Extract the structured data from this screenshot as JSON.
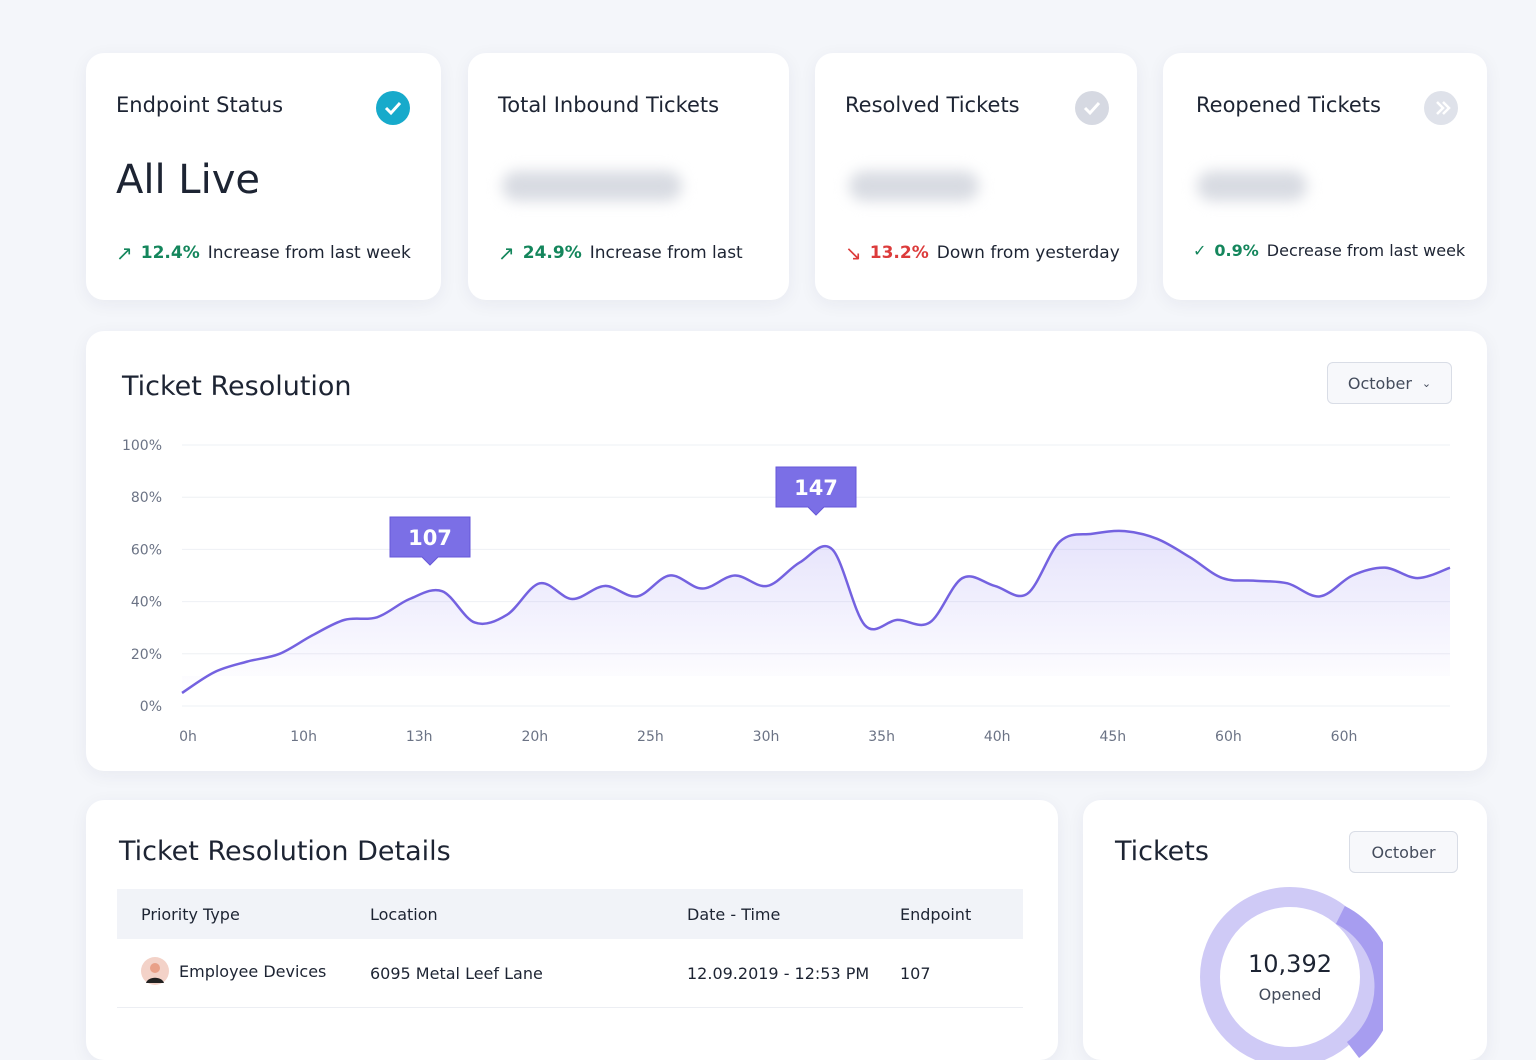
{
  "cards": [
    {
      "title": "Endpoint Status",
      "value": "All Live",
      "change": "12.4%",
      "note": "Increase from last week"
    },
    {
      "title": "Total Inbound Tickets",
      "change": "24.9%",
      "note": "Increase from last"
    },
    {
      "title": "Resolved Tickets",
      "change": "13.2%",
      "note": "Down from yesterday"
    },
    {
      "title": "Reopened Tickets",
      "change": "0.9%",
      "note": "Decrease from last week"
    }
  ],
  "resolution_chart": {
    "title": "Ticket Resolution",
    "period": "October",
    "x_labels": [
      "0h",
      "10h",
      "13h",
      "20h",
      "25h",
      "30h",
      "35h",
      "40h",
      "45h",
      "60h",
      "60h"
    ],
    "ylim": [
      0,
      100
    ],
    "yticks": [
      {
        "value": 0,
        "label": "0%"
      },
      {
        "value": 20,
        "label": "20%"
      },
      {
        "value": 40,
        "label": "40%"
      },
      {
        "value": 60,
        "label": "60%"
      },
      {
        "value": 80,
        "label": "80%"
      },
      {
        "value": 100,
        "label": "100%"
      }
    ],
    "values": [
      5,
      13,
      17,
      20,
      27,
      33,
      34,
      41,
      44,
      32,
      35,
      47,
      41,
      46,
      42,
      50,
      45,
      50,
      46,
      55,
      60,
      31,
      33,
      32,
      49,
      46,
      43,
      63,
      66,
      67,
      64,
      57,
      49,
      48,
      47,
      42,
      50,
      53,
      49,
      53
    ],
    "callouts": [
      "107",
      "147"
    ]
  },
  "details": {
    "title": "Ticket Resolution Details",
    "headers": [
      "Priority Type",
      "Location",
      "Date - Time",
      "Endpoint"
    ],
    "rows": [
      [
        "Employee Devices",
        "6095 Metal Leef Lane",
        "12.09.2019 - 12:53 PM",
        "107"
      ]
    ]
  },
  "tickets": {
    "title": "Tickets",
    "period": "October",
    "total": "10,392",
    "label": "Opened"
  }
}
